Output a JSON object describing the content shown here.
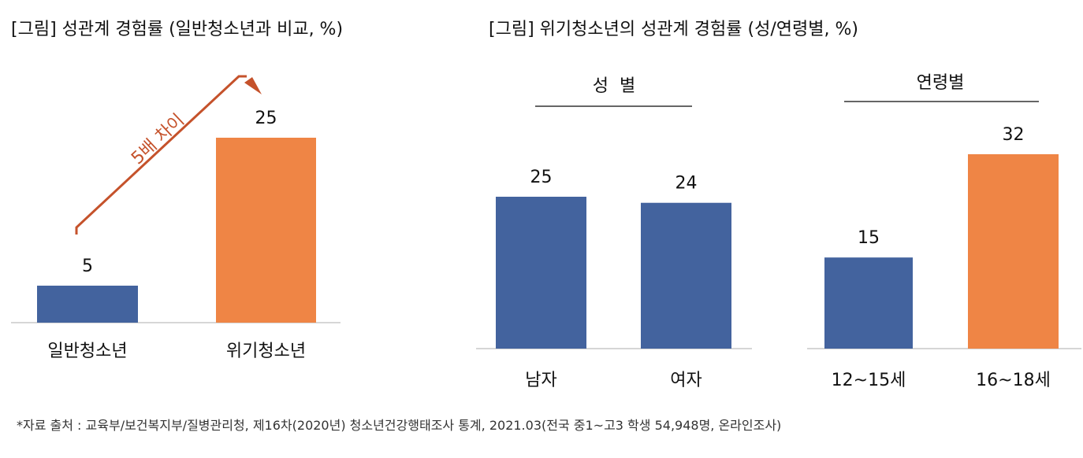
{
  "left": {
    "title": "[그림] 성관계 경험률 (일반청소년과 비교, %)",
    "annotation": "5배 차이"
  },
  "right": {
    "title": "[그림] 위기청소년의 성관계 경험률 (성/연령별, %)",
    "group_gender": "성  별",
    "group_age": "연령별"
  },
  "footnote": "*자료 출처 : 교육부/보건복지부/질병관리청, 제16차(2020년) 청소년건강행태조사 통계, 2021.03(전국 중1~고3 학생 54,948명, 온라인조사)",
  "colors": {
    "blue": "#43639e",
    "orange": "#ef8545",
    "arrow": "#c5522b"
  },
  "chart_data": [
    {
      "type": "bar",
      "categories": [
        "일반청소년",
        "위기청소년"
      ],
      "values": [
        5,
        25
      ],
      "value_labels": [
        "5",
        "25"
      ],
      "colors": [
        "#43639e",
        "#ef8545"
      ]
    },
    {
      "type": "bar",
      "categories": [
        "남자",
        "여자"
      ],
      "values": [
        25,
        24
      ],
      "value_labels": [
        "25",
        "24"
      ],
      "colors": [
        "#43639e",
        "#43639e"
      ]
    },
    {
      "type": "bar",
      "categories": [
        "12~15세",
        "16~18세"
      ],
      "values": [
        15,
        32
      ],
      "value_labels": [
        "15",
        "32"
      ],
      "colors": [
        "#43639e",
        "#ef8545"
      ]
    }
  ]
}
